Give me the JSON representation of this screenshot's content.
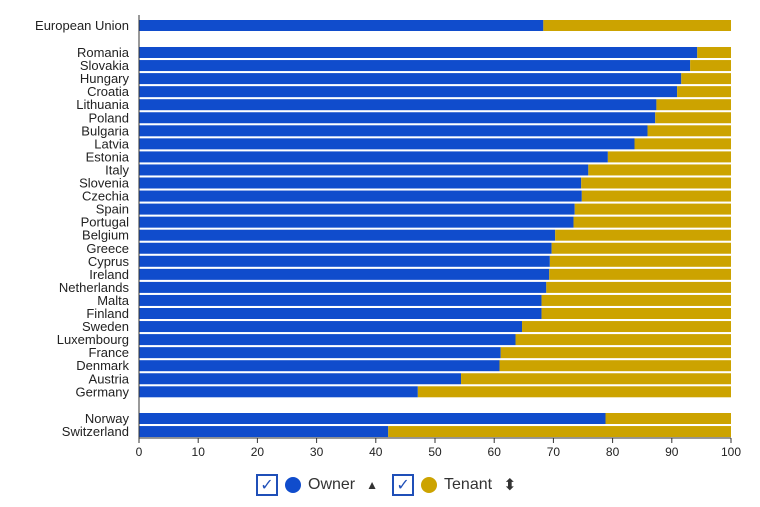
{
  "chart_data": {
    "type": "bar",
    "stacked": true,
    "orientation": "horizontal",
    "xlim": [
      0,
      100
    ],
    "xticks": [
      "0",
      "10",
      "20",
      "30",
      "40",
      "50",
      "60",
      "70",
      "80",
      "90",
      "100"
    ],
    "groups": [
      {
        "categories": [
          "European Union"
        ]
      },
      {
        "categories": [
          "Romania",
          "Slovakia",
          "Hungary",
          "Croatia",
          "Lithuania",
          "Poland",
          "Bulgaria",
          "Latvia",
          "Estonia",
          "Italy",
          "Slovenia",
          "Czechia",
          "Spain",
          "Portugal",
          "Belgium",
          "Greece",
          "Cyprus",
          "Ireland",
          "Netherlands",
          "Malta",
          "Finland",
          "Sweden",
          "Luxembourg",
          "France",
          "Denmark",
          "Austria",
          "Germany"
        ]
      },
      {
        "categories": [
          "Norway",
          "Switzerland"
        ]
      }
    ],
    "owner": [
      68.3,
      94.3,
      93.1,
      91.6,
      90.9,
      87.4,
      87.2,
      85.9,
      83.7,
      79.2,
      75.9,
      74.7,
      74.8,
      73.6,
      73.4,
      70.3,
      69.7,
      69.4,
      69.3,
      68.8,
      68.0,
      68.0,
      64.7,
      63.6,
      61.1,
      60.9,
      54.4,
      47.1,
      78.8,
      42.1
    ],
    "series": [
      {
        "name": "Owner",
        "color": "#104ccc"
      },
      {
        "name": "Tenant",
        "color": "#cca300"
      }
    ]
  },
  "legend": {
    "owner": "Owner",
    "tenant": "Tenant",
    "check": "✓",
    "sort_up": "▲",
    "sort_both": "⬍"
  }
}
